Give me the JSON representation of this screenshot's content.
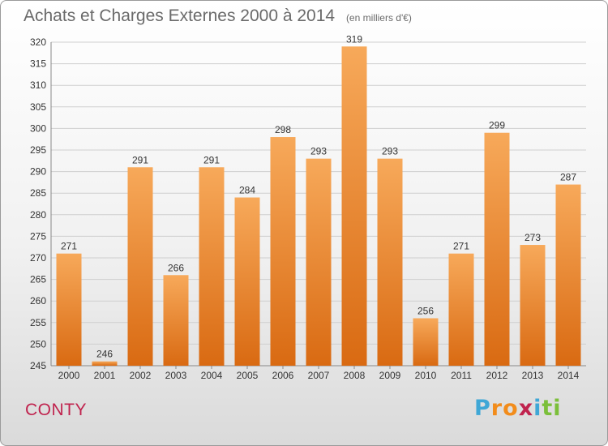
{
  "header": {
    "title": "Achats et Charges Externes 2000 à 2014",
    "unit_note": "(en milliers d'€)"
  },
  "footer": {
    "city": "CONTY",
    "logo_letters": [
      "P",
      "r",
      "o",
      "x",
      "i",
      "t",
      "i"
    ],
    "logo_colors": [
      "#3fa7d6",
      "#f28c1b",
      "#f28c1b",
      "#c0234e",
      "#3fa7d6",
      "#7bbf3a",
      "#7bbf3a"
    ]
  },
  "colors": {
    "bar_top": "#f7a95a",
    "bar_bottom": "#d96a12",
    "grid": "#cfcfcf",
    "axis_text": "#333333",
    "title_text": "#6a6a6a",
    "city_text": "#c0234e"
  },
  "chart_data": {
    "type": "bar",
    "title": "Achats et Charges Externes 2000 à 2014",
    "subtitle": "(en milliers d'€)",
    "xlabel": "",
    "ylabel": "",
    "categories": [
      "2000",
      "2001",
      "2002",
      "2003",
      "2004",
      "2005",
      "2006",
      "2007",
      "2008",
      "2009",
      "2010",
      "2011",
      "2012",
      "2013",
      "2014"
    ],
    "values": [
      271,
      246,
      291,
      266,
      291,
      284,
      298,
      293,
      319,
      293,
      256,
      271,
      299,
      273,
      287
    ],
    "ylim": [
      245,
      320
    ],
    "yticks": [
      245,
      250,
      255,
      260,
      265,
      270,
      275,
      280,
      285,
      290,
      295,
      300,
      305,
      310,
      315,
      320
    ],
    "grid": true,
    "legend": "none"
  }
}
